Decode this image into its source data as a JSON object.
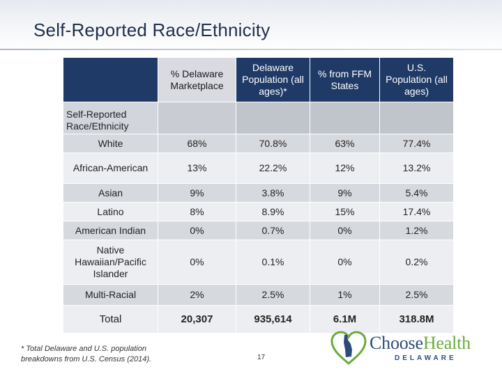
{
  "slide": {
    "title": "Self-Reported Race/Ethnicity",
    "page_number": "17",
    "footnote": "* Total Delaware and U.S. population breakdowns from U.S. Census (2014)."
  },
  "table": {
    "headers": [
      "% Delaware Marketplace",
      "Delaware Population (all ages)*",
      "% from FFM States",
      "U.S. Population (all ages)"
    ],
    "row_header_label": "Self-Reported Race/Ethnicity",
    "rows": [
      {
        "label": "White",
        "values": [
          "68%",
          "70.8%",
          "63%",
          "77.4%"
        ]
      },
      {
        "label": "African-American",
        "values": [
          "13%",
          "22.2%",
          "12%",
          "13.2%"
        ]
      },
      {
        "label": "Asian",
        "values": [
          "9%",
          "3.8%",
          "9%",
          "5.4%"
        ]
      },
      {
        "label": "Latino",
        "values": [
          "8%",
          "8.9%",
          "15%",
          "17.4%"
        ]
      },
      {
        "label": "American Indian",
        "values": [
          "0%",
          "0.7%",
          "0%",
          "1.2%"
        ]
      },
      {
        "label": "Native Hawaiian/Pacific Islander",
        "values": [
          "0%",
          "0.1%",
          "0%",
          "0.2%"
        ]
      },
      {
        "label": "Multi-Racial",
        "values": [
          "2%",
          "2.5%",
          "1%",
          "2.5%"
        ]
      }
    ],
    "total": {
      "label": "Total",
      "values": [
        "20,307",
        "935,614",
        "6.1M",
        "318.8M"
      ]
    }
  },
  "logo": {
    "brand_first": "Choose",
    "brand_second": "Health",
    "subtitle": "DELAWARE"
  },
  "colors": {
    "header_dark": "#1f3a66",
    "title": "#1f2f4a",
    "brand_blue": "#2d4b7a",
    "brand_green": "#6aab3c"
  }
}
